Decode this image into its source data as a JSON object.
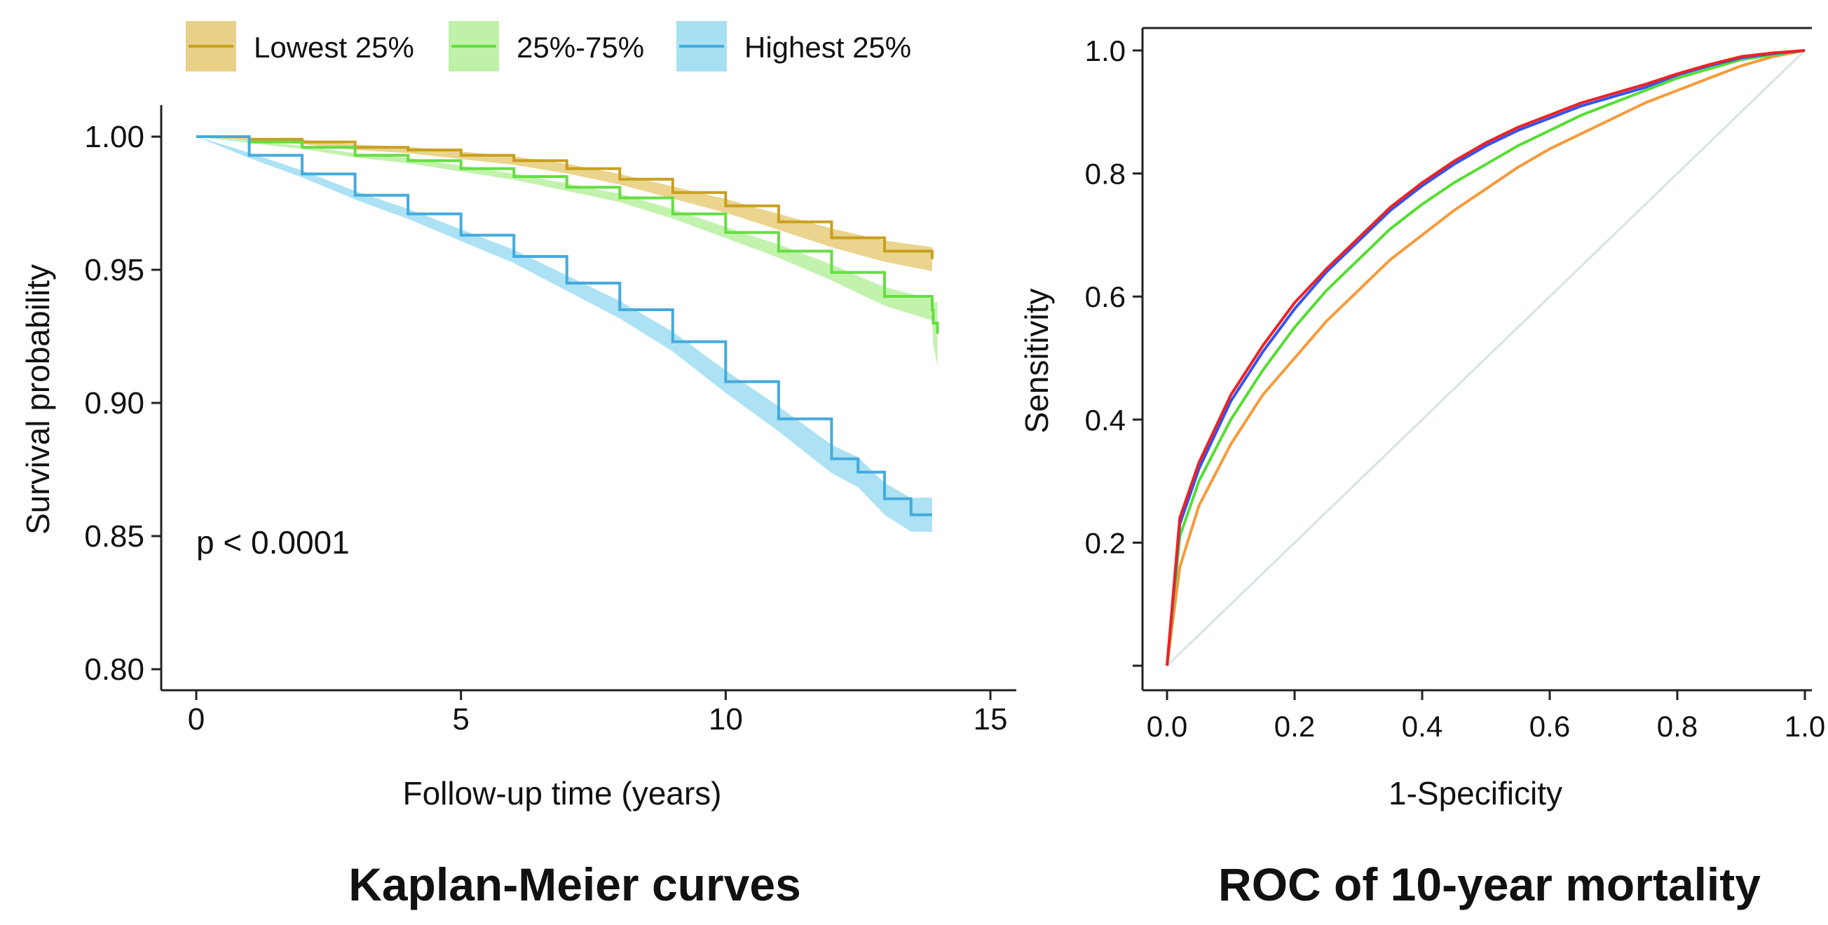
{
  "chart_data": [
    {
      "type": "line",
      "title": "Kaplan-Meier curves",
      "xlabel": "Follow-up time (years)",
      "ylabel": "Survival probability",
      "xlim": [
        0,
        15
      ],
      "ylim": [
        0.8,
        1.0
      ],
      "x_ticks": [
        0,
        5,
        10,
        15
      ],
      "x_tick_labels": [
        "0",
        "5",
        "10",
        "15"
      ],
      "y_ticks": [
        0.8,
        0.85,
        0.9,
        0.95,
        1.0
      ],
      "y_tick_labels": [
        "0.80",
        "0.85",
        "0.90",
        "0.95",
        "1.00"
      ],
      "grid": false,
      "legend_position": "top",
      "annotation": "p < 0.0001",
      "series": [
        {
          "name": "Lowest 25%",
          "color": "#c8a020",
          "band_color": "#e6cc7a",
          "x": [
            0,
            1,
            2,
            3,
            4,
            5,
            6,
            7,
            8,
            9,
            10,
            11,
            12,
            13,
            13.9
          ],
          "y": [
            1.0,
            0.999,
            0.998,
            0.996,
            0.995,
            0.993,
            0.991,
            0.988,
            0.984,
            0.979,
            0.974,
            0.968,
            0.962,
            0.957,
            0.954
          ],
          "ci_width": [
            0,
            0.0005,
            0.0008,
            0.001,
            0.0012,
            0.0014,
            0.0016,
            0.0018,
            0.002,
            0.0023,
            0.0026,
            0.003,
            0.0035,
            0.004,
            0.0045
          ]
        },
        {
          "name": "25%-75%",
          "color": "#66dd44",
          "band_color": "#b8f0a0",
          "x": [
            0,
            1,
            2,
            3,
            4,
            5,
            6,
            7,
            8,
            9,
            10,
            11,
            12,
            13,
            13.9,
            13.92,
            14.0
          ],
          "y": [
            1.0,
            0.998,
            0.996,
            0.993,
            0.991,
            0.988,
            0.985,
            0.981,
            0.977,
            0.971,
            0.964,
            0.957,
            0.949,
            0.94,
            0.935,
            0.93,
            0.926
          ],
          "ci_width": [
            0,
            0.0004,
            0.0006,
            0.0008,
            0.001,
            0.0011,
            0.0012,
            0.0014,
            0.0016,
            0.0018,
            0.0021,
            0.0025,
            0.003,
            0.0035,
            0.004,
            0.008,
            0.012
          ]
        },
        {
          "name": "Highest 25%",
          "color": "#44aadd",
          "band_color": "#9dddf2",
          "x": [
            0,
            1,
            2,
            3,
            4,
            5,
            6,
            7,
            8,
            9,
            10,
            11,
            12,
            12.5,
            13,
            13.5,
            13.9
          ],
          "y": [
            1.0,
            0.993,
            0.986,
            0.978,
            0.971,
            0.963,
            0.955,
            0.945,
            0.935,
            0.923,
            0.908,
            0.894,
            0.879,
            0.874,
            0.864,
            0.858,
            0.858
          ],
          "ci_width": [
            0,
            0.001,
            0.0013,
            0.0016,
            0.0019,
            0.0022,
            0.0025,
            0.0029,
            0.0033,
            0.0037,
            0.0042,
            0.0047,
            0.0053,
            0.0056,
            0.006,
            0.0063,
            0.0065
          ]
        }
      ]
    },
    {
      "type": "line",
      "title": "ROC of 10-year mortality",
      "xlabel": "1-Specificity",
      "ylabel": "Sensitivity",
      "xlim": [
        0,
        1
      ],
      "ylim": [
        0,
        1
      ],
      "x_ticks": [
        0,
        0.2,
        0.4,
        0.6,
        0.8,
        1.0
      ],
      "x_tick_labels": [
        "0.0",
        "0.2",
        "0.4",
        "0.6",
        "0.8",
        "1.0"
      ],
      "y_ticks": [
        0,
        0.2,
        0.4,
        0.6,
        0.8,
        1.0
      ],
      "y_tick_labels": [
        "",
        "0.2",
        "0.4",
        "0.6",
        "0.8",
        "1.0"
      ],
      "grid": false,
      "legend_position": "none",
      "reference_line": {
        "x": [
          0,
          1
        ],
        "y": [
          0,
          1
        ],
        "color": "#d8e2e6"
      },
      "series": [
        {
          "color": "#f79a3a",
          "x": [
            0,
            0.02,
            0.05,
            0.1,
            0.15,
            0.2,
            0.25,
            0.3,
            0.35,
            0.4,
            0.45,
            0.5,
            0.55,
            0.6,
            0.65,
            0.7,
            0.75,
            0.8,
            0.85,
            0.9,
            0.95,
            1.0
          ],
          "y": [
            0,
            0.16,
            0.26,
            0.36,
            0.44,
            0.5,
            0.56,
            0.61,
            0.66,
            0.7,
            0.74,
            0.775,
            0.81,
            0.84,
            0.865,
            0.89,
            0.915,
            0.935,
            0.955,
            0.975,
            0.99,
            1.0
          ]
        },
        {
          "color": "#55dd33",
          "x": [
            0,
            0.02,
            0.05,
            0.1,
            0.15,
            0.2,
            0.25,
            0.3,
            0.35,
            0.4,
            0.45,
            0.5,
            0.55,
            0.6,
            0.65,
            0.7,
            0.75,
            0.8,
            0.85,
            0.9,
            0.95,
            1.0
          ],
          "y": [
            0,
            0.21,
            0.3,
            0.4,
            0.48,
            0.55,
            0.61,
            0.66,
            0.71,
            0.75,
            0.785,
            0.815,
            0.845,
            0.87,
            0.895,
            0.915,
            0.935,
            0.955,
            0.97,
            0.985,
            0.993,
            1.0
          ]
        },
        {
          "color": "#3355ee",
          "x": [
            0,
            0.02,
            0.05,
            0.1,
            0.15,
            0.2,
            0.25,
            0.3,
            0.35,
            0.4,
            0.45,
            0.5,
            0.55,
            0.6,
            0.65,
            0.7,
            0.75,
            0.8,
            0.85,
            0.9,
            0.95,
            1.0
          ],
          "y": [
            0,
            0.23,
            0.32,
            0.43,
            0.51,
            0.58,
            0.64,
            0.69,
            0.74,
            0.78,
            0.815,
            0.845,
            0.87,
            0.89,
            0.91,
            0.925,
            0.94,
            0.96,
            0.975,
            0.988,
            0.995,
            1.0
          ]
        },
        {
          "color": "#ee2222",
          "x": [
            0,
            0.02,
            0.05,
            0.1,
            0.15,
            0.2,
            0.25,
            0.3,
            0.35,
            0.4,
            0.45,
            0.5,
            0.55,
            0.6,
            0.65,
            0.7,
            0.75,
            0.8,
            0.85,
            0.9,
            0.95,
            1.0
          ],
          "y": [
            0,
            0.24,
            0.33,
            0.44,
            0.52,
            0.59,
            0.645,
            0.695,
            0.745,
            0.785,
            0.82,
            0.85,
            0.875,
            0.895,
            0.915,
            0.93,
            0.945,
            0.962,
            0.977,
            0.99,
            0.996,
            1.0
          ]
        }
      ]
    }
  ]
}
